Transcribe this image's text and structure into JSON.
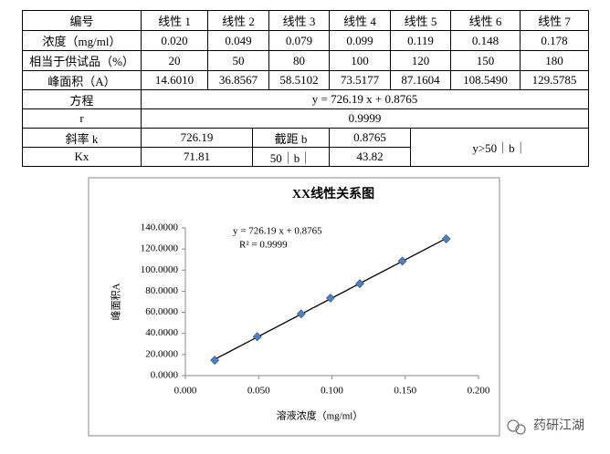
{
  "table": {
    "rows": [
      [
        "编号",
        "线性 1",
        "线性 2",
        "线性 3",
        "线性 4",
        "线性 5",
        "线性 6",
        "线性 7"
      ],
      [
        "浓度（mg/ml）",
        "0.020",
        "0.049",
        "0.079",
        "0.099",
        "0.119",
        "0.148",
        "0.178"
      ],
      [
        "相当于供试品（%）",
        "20",
        "50",
        "80",
        "100",
        "120",
        "150",
        "180"
      ],
      [
        "峰面积（A）",
        "14.6010",
        "36.8567",
        "58.5102",
        "73.5177",
        "87.1604",
        "108.5490",
        "129.5785"
      ],
      [
        "方程",
        "y = 726.19 x + 0.8765"
      ],
      [
        "r",
        "0.9999"
      ],
      [
        "斜率 k",
        "726.19",
        "截距 b",
        "0.8765",
        "y>50｜b｜"
      ],
      [
        "Kx",
        "71.81",
        "50｜b｜",
        "43.82"
      ]
    ]
  },
  "chart_data": {
    "type": "scatter",
    "title": "XX线性关系图",
    "x_label": "溶液浓度（mg/ml）",
    "y_label": "峰面积A",
    "annotations": [
      "y = 726.19  x + 0.8765",
      "R² = 0.9999"
    ],
    "x": [
      0.02,
      0.049,
      0.079,
      0.099,
      0.119,
      0.148,
      0.178
    ],
    "values": [
      14.601,
      36.8567,
      58.5102,
      73.5177,
      87.1604,
      108.549,
      129.5785
    ],
    "color": "#4f81bd",
    "trendline": {
      "slope": 726.19,
      "intercept": 0.8765,
      "color": "#000000"
    },
    "xlim": [
      0,
      0.2
    ],
    "xticks": [
      {
        "value": 0,
        "label": "0.000"
      },
      {
        "value": 0.05,
        "label": "0.050"
      },
      {
        "value": 0.1,
        "label": "0.100"
      },
      {
        "value": 0.15,
        "label": "0.150"
      },
      {
        "value": 0.2,
        "label": "0.200"
      }
    ],
    "ylim": [
      0,
      140
    ],
    "yticks": [
      {
        "value": 0,
        "label": "0.0000"
      },
      {
        "value": 20,
        "label": "20.0000"
      },
      {
        "value": 40,
        "label": "40.0000"
      },
      {
        "value": 60,
        "label": "60.0000"
      },
      {
        "value": 80,
        "label": "80.0000"
      },
      {
        "value": 100,
        "label": "100.0000"
      },
      {
        "value": 120,
        "label": "120.0000"
      },
      {
        "value": 140,
        "label": "140.0000"
      }
    ],
    "grid": false
  },
  "watermark": "药研江湖"
}
